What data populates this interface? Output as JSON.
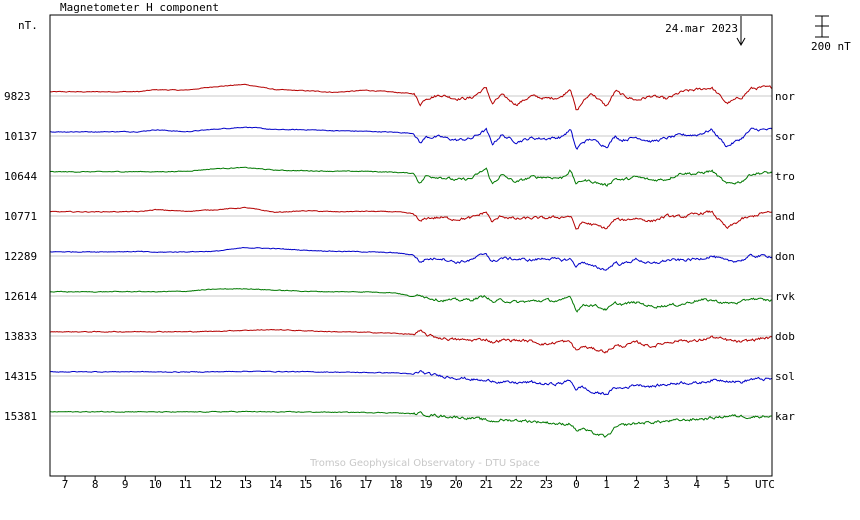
{
  "chart_data": {
    "type": "line",
    "title": "Magnetometer H component",
    "ylabel": "nT.",
    "date_label": "24.mar 2023",
    "scale_label": "200 nT",
    "scale_nT": 200,
    "watermark": "Tromso Geophysical Observatory - DTU Space",
    "x_unit": "UTC",
    "x_ticks": [
      "7",
      "8",
      "9",
      "10",
      "11",
      "12",
      "13",
      "14",
      "15",
      "16",
      "17",
      "18",
      "19",
      "20",
      "21",
      "22",
      "23",
      "0",
      "1",
      "2",
      "3",
      "4",
      "5"
    ],
    "xlim": [
      6.5,
      30.5
    ],
    "grid": true,
    "colors": {
      "red": "#b40000",
      "blue": "#0000c8",
      "green": "#007800",
      "grid": "#c8c8c8",
      "frame": "#000000"
    },
    "series": [
      {
        "name": "nor",
        "baseline": "9823",
        "color": "#b40000"
      },
      {
        "name": "sor",
        "baseline": "10137",
        "color": "#0000c8"
      },
      {
        "name": "tro",
        "baseline": "10644",
        "color": "#007800"
      },
      {
        "name": "and",
        "baseline": "10771",
        "color": "#b40000"
      },
      {
        "name": "don",
        "baseline": "12289",
        "color": "#0000c8"
      },
      {
        "name": "rvk",
        "baseline": "12614",
        "color": "#007800"
      },
      {
        "name": "dob",
        "baseline": "13833",
        "color": "#b40000"
      },
      {
        "name": "sol",
        "baseline": "14315",
        "color": "#0000c8"
      },
      {
        "name": "kar",
        "baseline": "15381",
        "color": "#007800"
      }
    ],
    "trace_nT": {
      "times": [
        6.5,
        8.0,
        9.5,
        10.0,
        11.0,
        12.0,
        13.0,
        14.0,
        15.0,
        16.0,
        17.0,
        18.0,
        18.6,
        18.8,
        19.0,
        19.5,
        20.0,
        20.5,
        21.0,
        21.2,
        21.5,
        22.0,
        22.5,
        23.0,
        23.5,
        23.8,
        24.0,
        24.2,
        24.5,
        25.0,
        25.3,
        25.5,
        26.0,
        26.5,
        27.0,
        27.5,
        28.0,
        28.5,
        29.0,
        29.5,
        29.8,
        30.2
      ],
      "nor": [
        40,
        40,
        42,
        60,
        55,
        90,
        110,
        60,
        50,
        35,
        55,
        35,
        20,
        -80,
        -20,
        10,
        -25,
        -20,
        80,
        -80,
        10,
        -80,
        0,
        -25,
        -10,
        80,
        -150,
        -60,
        30,
        -100,
        50,
        10,
        -40,
        0,
        -30,
        40,
        60,
        80,
        -70,
        -10,
        70,
        80
      ],
      "sor": [
        40,
        40,
        42,
        60,
        40,
        65,
        85,
        60,
        60,
        50,
        45,
        35,
        25,
        -70,
        -10,
        -10,
        -40,
        -25,
        60,
        -80,
        10,
        -55,
        -20,
        -25,
        -10,
        60,
        -130,
        -60,
        -30,
        -100,
        0,
        -40,
        -10,
        -55,
        -20,
        10,
        10,
        60,
        -100,
        -20,
        60,
        60
      ],
      "tro": [
        40,
        40,
        42,
        40,
        45,
        70,
        80,
        55,
        50,
        45,
        45,
        35,
        25,
        -70,
        0,
        -10,
        -40,
        -25,
        70,
        -80,
        10,
        -60,
        -10,
        -10,
        -20,
        50,
        -80,
        -40,
        -50,
        -90,
        -20,
        -40,
        -10,
        -40,
        -30,
        30,
        20,
        50,
        -80,
        -50,
        20,
        30
      ],
      "and": [
        40,
        40,
        42,
        60,
        45,
        60,
        80,
        35,
        50,
        40,
        45,
        40,
        20,
        -60,
        -20,
        -15,
        -30,
        -20,
        40,
        -60,
        0,
        -30,
        -20,
        -20,
        -10,
        0,
        -130,
        -60,
        -80,
        -120,
        -30,
        -40,
        -20,
        -50,
        0,
        -10,
        20,
        40,
        -120,
        -30,
        -10,
        30
      ],
      "don": [
        40,
        40,
        42,
        35,
        40,
        45,
        80,
        70,
        55,
        45,
        40,
        30,
        10,
        -60,
        -30,
        -20,
        -60,
        -40,
        30,
        -60,
        -20,
        -30,
        -40,
        -20,
        -40,
        -30,
        -100,
        -50,
        -100,
        -130,
        -60,
        -80,
        -30,
        -80,
        -40,
        -40,
        -30,
        0,
        -50,
        -40,
        0,
        0
      ],
      "rvk": [
        40,
        40,
        42,
        40,
        45,
        65,
        70,
        55,
        45,
        40,
        40,
        30,
        -10,
        20,
        -10,
        -40,
        -40,
        -35,
        0,
        -60,
        -40,
        -60,
        -50,
        -40,
        -50,
        0,
        -140,
        -90,
        -80,
        -130,
        -70,
        -80,
        -60,
        -100,
        -90,
        -80,
        -40,
        -40,
        -70,
        -60,
        -20,
        -40
      ],
      "dob": [
        40,
        40,
        41,
        42,
        40,
        45,
        55,
        60,
        50,
        40,
        35,
        25,
        15,
        45,
        10,
        -20,
        -35,
        -40,
        -30,
        -60,
        -40,
        -40,
        -50,
        -80,
        -50,
        -60,
        -140,
        -100,
        -120,
        -150,
        -90,
        -100,
        -60,
        -100,
        -60,
        -40,
        -50,
        -10,
        -40,
        -60,
        -40,
        -20
      ],
      "sol": [
        40,
        40,
        41,
        38,
        38,
        40,
        45,
        42,
        40,
        37,
        33,
        30,
        15,
        45,
        20,
        0,
        -15,
        -30,
        -50,
        -40,
        -60,
        -65,
        -60,
        -80,
        -70,
        -40,
        -130,
        -100,
        -160,
        -170,
        -110,
        -120,
        -80,
        -100,
        -80,
        -60,
        -70,
        -40,
        -40,
        -60,
        -30,
        -30
      ],
      "kar": [
        40,
        40,
        41,
        38,
        38,
        40,
        42,
        38,
        38,
        36,
        34,
        30,
        20,
        25,
        15,
        0,
        -10,
        -20,
        -40,
        -50,
        -40,
        -40,
        -50,
        -60,
        -80,
        -70,
        -140,
        -120,
        -160,
        -200,
        -110,
        -90,
        -70,
        -60,
        -50,
        -40,
        -30,
        -20,
        0,
        0,
        -10,
        0
      ]
    }
  }
}
